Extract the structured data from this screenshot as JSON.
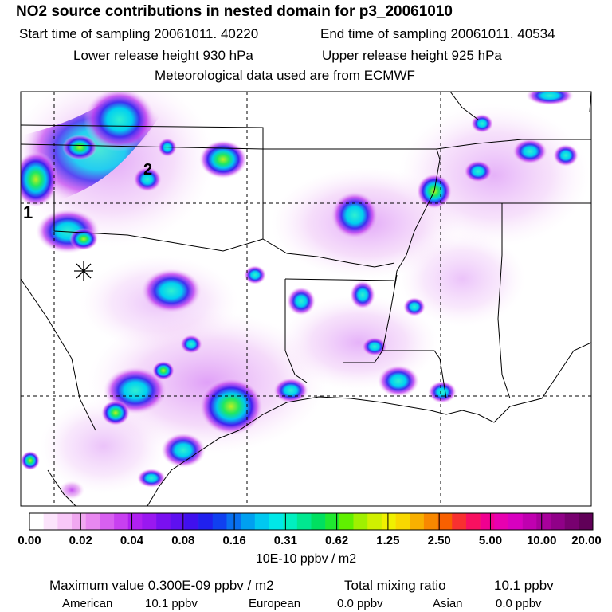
{
  "header": {
    "title": "NO2 source contributions in nested domain for p3_20061010",
    "start_time": "Start time of sampling 20061011. 40220",
    "end_time": "End time of sampling 20061011. 40534",
    "lower_height": "Lower release height  930 hPa",
    "upper_height": "Upper release height  925 hPa",
    "met_data": "Meteorological data used are from ECMWF"
  },
  "map": {
    "markers": [
      {
        "label": "1",
        "x": -95.8,
        "y": 36.1
      },
      {
        "label": "2",
        "x": -93.3,
        "y": 37.2
      }
    ]
  },
  "legend": {
    "ticks": [
      "0.00",
      "0.02",
      "0.04",
      "0.08",
      "0.16",
      "0.31",
      "0.62",
      "1.25",
      "2.50",
      "5.00",
      "10.00",
      "20.00"
    ],
    "units": "10E-10 ppbv / m2",
    "colors": [
      "#ffffff",
      "#fce4fc",
      "#f8c8f8",
      "#f0a8f0",
      "#e888f0",
      "#d860f0",
      "#c840f0",
      "#b020f0",
      "#9a18f0",
      "#7a10f0",
      "#5e10f0",
      "#4010ee",
      "#2020ee",
      "#1040f0",
      "#0870f0",
      "#00a0f0",
      "#00c8f0",
      "#00e8e8",
      "#00f0c0",
      "#00e890",
      "#00e060",
      "#20e830",
      "#60f000",
      "#a0f000",
      "#d0f000",
      "#f0f000",
      "#f8d800",
      "#f8b000",
      "#f88800",
      "#f86000",
      "#f83030",
      "#f81060",
      "#f00090",
      "#e800b0",
      "#d800c0",
      "#c000b0",
      "#a8009c",
      "#900088",
      "#780070",
      "#600058"
    ]
  },
  "summary": {
    "max_value": "Maximum value  0.300E-09 ppbv / m2",
    "total_label": "Total mixing ratio",
    "total_value": "10.1 ppbv",
    "american_label": "American",
    "american_value": "10.1 ppbv",
    "european_label": "European",
    "european_value": "0.0 ppbv",
    "asian_label": "Asian",
    "asian_value": "0.0 ppbv"
  }
}
